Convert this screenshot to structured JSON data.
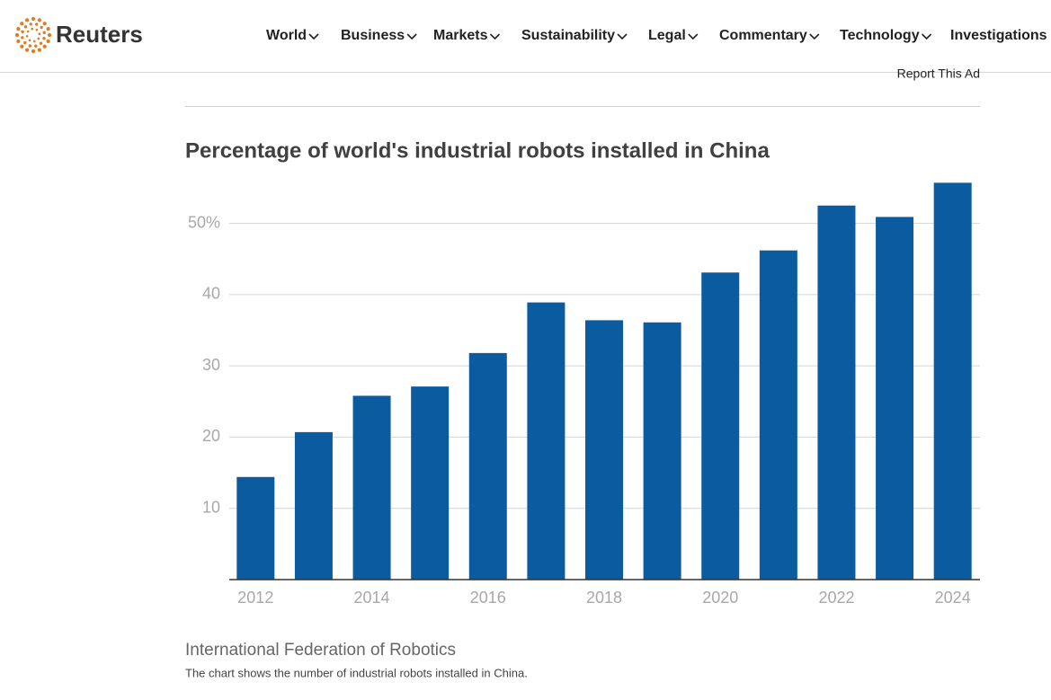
{
  "header": {
    "logo": "Reuters",
    "nav": [
      "World",
      "Business",
      "Markets",
      "Sustainability",
      "Legal",
      "Commentary",
      "Technology",
      "Investigations"
    ]
  },
  "ad_label": "Report This Ad",
  "chart_data": {
    "type": "bar",
    "title": "Percentage of world's industrial robots installed in China",
    "categories": [
      "2012",
      null,
      "2014",
      null,
      "2016",
      null,
      "2018",
      null,
      "2020",
      null,
      "2022",
      null,
      "2024"
    ],
    "values": [
      14.4,
      20.7,
      25.8,
      27.1,
      31.8,
      38.9,
      36.4,
      36.1,
      43.1,
      46.2,
      52.5,
      50.9,
      55.7
    ],
    "color": "#0b5ba1",
    "ylim": [
      0,
      56
    ],
    "yticks": [
      10,
      20,
      30,
      40,
      {
        "value": 50,
        "label": "50%"
      }
    ],
    "grid": true
  },
  "source": "International Federation of Robotics",
  "caption": "The chart shows the number of industrial robots installed in China."
}
